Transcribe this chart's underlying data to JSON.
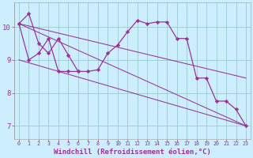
{
  "bg_color": "#cceeff",
  "line_color": "#993399",
  "grid_color": "#99cccc",
  "xlabel": "Windchill (Refroidissement éolien,°C)",
  "xlabel_fontsize": 6.5,
  "ylabel_vals": [
    7,
    8,
    9,
    10
  ],
  "x_ticks": [
    0,
    1,
    2,
    3,
    4,
    5,
    6,
    7,
    8,
    9,
    10,
    11,
    12,
    13,
    14,
    15,
    16,
    17,
    18,
    19,
    20,
    21,
    22,
    23
  ],
  "xlim": [
    -0.5,
    23.5
  ],
  "ylim": [
    6.6,
    10.75
  ],
  "series": [
    {
      "x": [
        0,
        1,
        2,
        3,
        4,
        5,
        6,
        7,
        8,
        9,
        10,
        11,
        12,
        13,
        14,
        15,
        16,
        17,
        18,
        19,
        20,
        21,
        22,
        23
      ],
      "y": [
        10.1,
        10.4,
        9.5,
        9.2,
        9.65,
        9.15,
        8.65,
        8.65,
        8.7,
        9.2,
        9.45,
        9.85,
        10.2,
        10.1,
        10.15,
        10.15,
        9.65,
        9.65,
        8.45,
        8.45,
        7.75,
        7.75,
        7.5,
        7.0
      ],
      "marker": "D",
      "markersize": 2.2,
      "linewidth": 0.9,
      "zorder": 3
    },
    {
      "x": [
        0,
        1,
        2,
        3,
        4,
        5,
        6
      ],
      "y": [
        10.1,
        9.0,
        9.2,
        9.65,
        8.65,
        8.65,
        8.65
      ],
      "marker": "D",
      "markersize": 2.2,
      "linewidth": 0.9,
      "zorder": 3
    },
    {
      "x": [
        0,
        23
      ],
      "y": [
        10.1,
        7.0
      ],
      "marker": null,
      "markersize": 0,
      "linewidth": 0.75,
      "zorder": 2
    },
    {
      "x": [
        0,
        23
      ],
      "y": [
        9.0,
        7.0
      ],
      "marker": null,
      "markersize": 0,
      "linewidth": 0.75,
      "zorder": 2
    },
    {
      "x": [
        0,
        23
      ],
      "y": [
        10.1,
        8.45
      ],
      "marker": null,
      "markersize": 0,
      "linewidth": 0.75,
      "zorder": 2
    }
  ]
}
